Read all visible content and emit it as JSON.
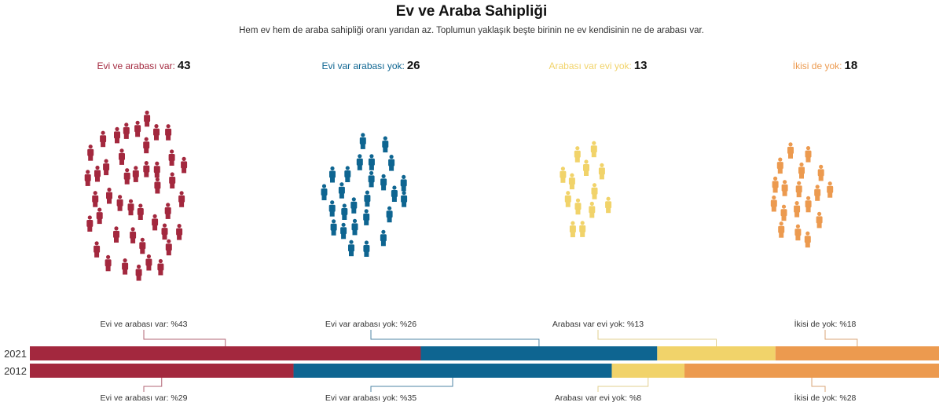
{
  "title": "Ev ve Araba Sahipliği",
  "subtitle": "Hem ev hem de araba sahipliği oranı yarıdan az. Toplumun yaklaşık beşte birinin ne ev kendisinin ne de arabası var.",
  "categories": [
    {
      "label": "Evi ve arabası var:",
      "count": "43",
      "color": "#a3283e"
    },
    {
      "label": "Evi var arabası yok:",
      "count": "26",
      "color": "#0e6591"
    },
    {
      "label": "Arabası var evi yok:",
      "count": "13",
      "color": "#f1d36a"
    },
    {
      "label": "İkisi de yok:",
      "count": "18",
      "color": "#ec9a4f"
    }
  ],
  "people_icon": "person-icon",
  "chart_data": {
    "type": "bar",
    "orientation": "horizontal-stacked-100",
    "categories": [
      "2021",
      "2012"
    ],
    "series": [
      {
        "name": "Evi ve arabası var",
        "values": [
          43,
          29
        ],
        "color": "#a3283e"
      },
      {
        "name": "Evi var arabası yok",
        "values": [
          26,
          35
        ],
        "color": "#0e6591"
      },
      {
        "name": "Arabası var evi yok",
        "values": [
          13,
          8
        ],
        "color": "#f1d36a"
      },
      {
        "name": "İkisi de yok",
        "values": [
          18,
          28
        ],
        "color": "#ec9a4f"
      }
    ],
    "annotations_2021": [
      "Evi ve arabası var: %43",
      "Evi var arabası yok: %26",
      "Arabası var evi yok: %13",
      "İkisi de yok: %18"
    ],
    "annotations_2012": [
      "Evi ve arabası var: %29",
      "Evi var arabası yok: %35",
      "Arabası var evi yok: %8",
      "İkisi de yok: %28"
    ],
    "xlim": [
      0,
      100
    ]
  }
}
